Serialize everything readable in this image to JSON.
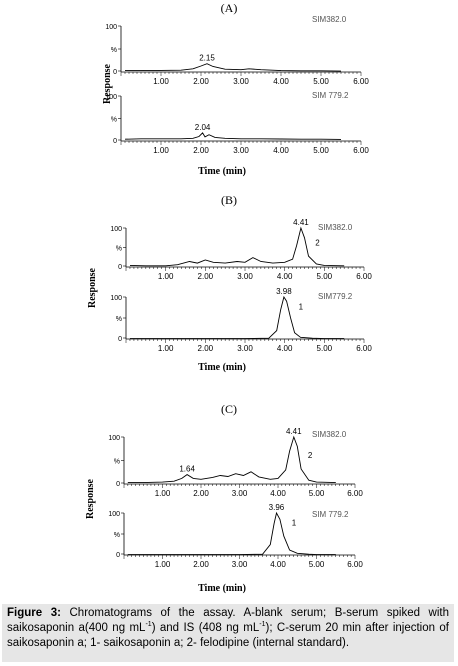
{
  "caption": {
    "label": "Figure 3:",
    "text_1": " Chromatograms of the assay. A-blank serum; B-serum spiked with saikosaponin a(400 ng mL",
    "sup_1": "-1",
    "text_2": ") and IS (408 ng mL",
    "sup_2": "-1",
    "text_3": "); C-serum 20 min after injection of saikosaponin a; 1- saikosaponin a; 2- felodipine (internal standard)."
  },
  "chart_data": [
    {
      "type": "line",
      "panel": "(A)",
      "xlabel": "Time (min)",
      "ylabel": "Response",
      "series": [
        {
          "name": "SIM382.0",
          "xlim": [
            0,
            6
          ],
          "ylim": [
            0,
            100
          ],
          "x_ticks": [
            "1.00",
            "2.00",
            "3.00",
            "4.00",
            "5.00",
            "6.00"
          ],
          "y_ticks": [
            "100",
            "%",
            "0"
          ],
          "points": [
            [
              0.1,
              3
            ],
            [
              0.5,
              3
            ],
            [
              1.0,
              3.5
            ],
            [
              1.5,
              4
            ],
            [
              1.8,
              7
            ],
            [
              2.0,
              13
            ],
            [
              2.15,
              18
            ],
            [
              2.3,
              12
            ],
            [
              2.6,
              6
            ],
            [
              3.0,
              5
            ],
            [
              3.2,
              7
            ],
            [
              3.5,
              5
            ],
            [
              4.0,
              3
            ],
            [
              4.5,
              2.5
            ],
            [
              5.0,
              2.5
            ],
            [
              5.5,
              2
            ]
          ],
          "annotations": [
            {
              "x": 2.15,
              "y": 18,
              "text": "2.15"
            }
          ]
        },
        {
          "name": "SIM 779.2",
          "xlim": [
            0,
            6
          ],
          "ylim": [
            0,
            100
          ],
          "x_ticks": [
            "1.00",
            "2.00",
            "3.00",
            "4.00",
            "5.00",
            "6.00"
          ],
          "y_ticks": [
            "100",
            "%",
            "0"
          ],
          "points": [
            [
              0.1,
              4
            ],
            [
              0.5,
              5
            ],
            [
              1.0,
              5
            ],
            [
              1.5,
              5
            ],
            [
              1.8,
              6
            ],
            [
              1.95,
              10
            ],
            [
              2.04,
              18
            ],
            [
              2.1,
              9
            ],
            [
              2.2,
              14
            ],
            [
              2.35,
              8
            ],
            [
              2.6,
              6
            ],
            [
              3.0,
              5
            ],
            [
              3.5,
              5
            ],
            [
              4.0,
              4.5
            ],
            [
              4.5,
              4
            ],
            [
              5.0,
              4
            ],
            [
              5.5,
              3.5
            ]
          ],
          "annotations": [
            {
              "x": 2.04,
              "y": 18,
              "text": "2.04"
            }
          ]
        }
      ]
    },
    {
      "type": "line",
      "panel": "(B)",
      "xlabel": "Time (min)",
      "ylabel": "Response",
      "series": [
        {
          "name": "SIM382.0",
          "xlim": [
            0,
            6
          ],
          "ylim": [
            0,
            100
          ],
          "x_ticks": [
            "1.00",
            "2.00",
            "3.00",
            "4.00",
            "5.00",
            "6.00"
          ],
          "y_ticks": [
            "100",
            "%",
            "0"
          ],
          "points": [
            [
              0.1,
              4
            ],
            [
              0.5,
              3
            ],
            [
              1.0,
              3
            ],
            [
              1.3,
              6
            ],
            [
              1.6,
              14
            ],
            [
              1.8,
              10
            ],
            [
              2.0,
              18
            ],
            [
              2.2,
              12
            ],
            [
              2.5,
              10
            ],
            [
              2.8,
              14
            ],
            [
              3.0,
              12
            ],
            [
              3.2,
              24
            ],
            [
              3.4,
              14
            ],
            [
              3.7,
              10
            ],
            [
              4.0,
              12
            ],
            [
              4.2,
              20
            ],
            [
              4.3,
              55
            ],
            [
              4.41,
              100
            ],
            [
              4.5,
              75
            ],
            [
              4.6,
              28
            ],
            [
              4.8,
              8
            ],
            [
              5.0,
              4
            ],
            [
              5.5,
              3
            ]
          ],
          "annotations": [
            {
              "x": 4.41,
              "y": 100,
              "text": "4.41"
            },
            {
              "x": 4.62,
              "y": 55,
              "text": "2"
            }
          ]
        },
        {
          "name": "SIM779.2",
          "xlim": [
            0,
            6
          ],
          "ylim": [
            0,
            100
          ],
          "x_ticks": [
            "1.00",
            "2.00",
            "3.00",
            "4.00",
            "5.00",
            "6.00"
          ],
          "y_ticks": [
            "100",
            "%",
            "0"
          ],
          "points": [
            [
              0.1,
              1
            ],
            [
              1.0,
              1
            ],
            [
              2.0,
              1
            ],
            [
              3.0,
              1
            ],
            [
              3.6,
              2
            ],
            [
              3.8,
              20
            ],
            [
              3.9,
              70
            ],
            [
              3.98,
              100
            ],
            [
              4.05,
              90
            ],
            [
              4.15,
              50
            ],
            [
              4.25,
              15
            ],
            [
              4.4,
              4
            ],
            [
              4.7,
              2
            ],
            [
              5.0,
              1
            ],
            [
              5.5,
              1
            ]
          ],
          "annotations": [
            {
              "x": 3.98,
              "y": 100,
              "text": "3.98"
            },
            {
              "x": 4.2,
              "y": 70,
              "text": "1"
            }
          ]
        }
      ]
    },
    {
      "type": "line",
      "panel": "(C)",
      "xlabel": "Time (min)",
      "ylabel": "Response",
      "series": [
        {
          "name": "SIM382.0",
          "xlim": [
            0,
            6
          ],
          "ylim": [
            0,
            100
          ],
          "x_ticks": [
            "1.00",
            "2.00",
            "3.00",
            "4.00",
            "5.00",
            "6.00"
          ],
          "y_ticks": [
            "100",
            "%",
            "0"
          ],
          "points": [
            [
              0.1,
              3
            ],
            [
              0.5,
              3
            ],
            [
              1.0,
              4
            ],
            [
              1.3,
              6
            ],
            [
              1.5,
              12
            ],
            [
              1.64,
              20
            ],
            [
              1.8,
              12
            ],
            [
              2.0,
              10
            ],
            [
              2.3,
              14
            ],
            [
              2.5,
              18
            ],
            [
              2.7,
              16
            ],
            [
              2.9,
              22
            ],
            [
              3.1,
              18
            ],
            [
              3.3,
              26
            ],
            [
              3.5,
              15
            ],
            [
              3.8,
              10
            ],
            [
              4.0,
              12
            ],
            [
              4.2,
              30
            ],
            [
              4.3,
              70
            ],
            [
              4.41,
              100
            ],
            [
              4.5,
              80
            ],
            [
              4.6,
              32
            ],
            [
              4.8,
              8
            ],
            [
              5.0,
              4
            ],
            [
              5.5,
              3
            ]
          ],
          "annotations": [
            {
              "x": 1.64,
              "y": 20,
              "text": "1.64"
            },
            {
              "x": 4.41,
              "y": 100,
              "text": "4.41"
            },
            {
              "x": 4.62,
              "y": 55,
              "text": "2"
            }
          ]
        },
        {
          "name": "SIM 779.2",
          "xlim": [
            0,
            6
          ],
          "ylim": [
            0,
            100
          ],
          "x_ticks": [
            "1.00",
            "2.00",
            "3.00",
            "4.00",
            "5.00",
            "6.00"
          ],
          "y_ticks": [
            "100",
            "%",
            "0"
          ],
          "points": [
            [
              0.1,
              1
            ],
            [
              1.0,
              1
            ],
            [
              2.0,
              1
            ],
            [
              3.0,
              1
            ],
            [
              3.6,
              2
            ],
            [
              3.8,
              25
            ],
            [
              3.9,
              75
            ],
            [
              3.96,
              100
            ],
            [
              4.05,
              85
            ],
            [
              4.15,
              45
            ],
            [
              4.3,
              12
            ],
            [
              4.5,
              4
            ],
            [
              4.8,
              2
            ],
            [
              5.0,
              1
            ],
            [
              5.5,
              1
            ]
          ],
          "annotations": [
            {
              "x": 3.96,
              "y": 100,
              "text": "3.96"
            },
            {
              "x": 4.2,
              "y": 70,
              "text": "1"
            }
          ]
        }
      ]
    }
  ]
}
